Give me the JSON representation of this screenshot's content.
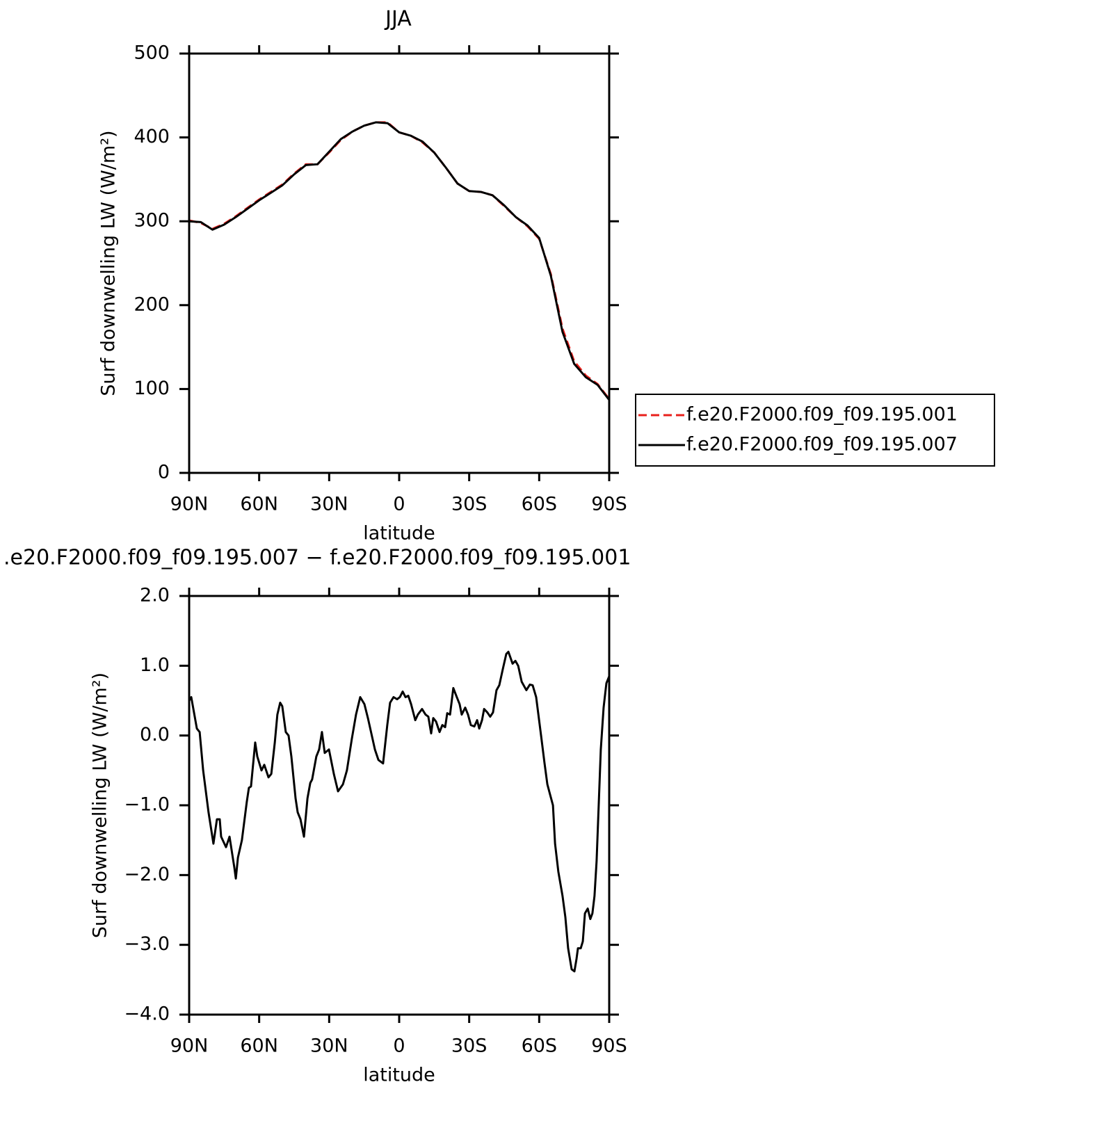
{
  "chart_data": [
    {
      "type": "line",
      "title": "JJA",
      "x_label": "latitude",
      "y_label": "Surf downwelling LW (W/m²)",
      "x": [
        90,
        85,
        80,
        75,
        70,
        65,
        60,
        55,
        50,
        45,
        40,
        35,
        30,
        25,
        20,
        15,
        10,
        5,
        0,
        -5,
        -10,
        -15,
        -20,
        -25,
        -30,
        -35,
        -40,
        -45,
        -50,
        -55,
        -60,
        -65,
        -70,
        -75,
        -80,
        -85,
        -90
      ],
      "series": [
        {
          "name": "f.e20.F2000.f09_f09.195.001",
          "color": "#e8201c",
          "line_style": "dashed",
          "values": [
            301,
            298,
            291,
            297,
            306,
            316,
            326,
            335,
            344,
            357,
            368,
            368,
            382,
            397,
            407,
            414,
            418,
            418,
            406,
            402,
            394,
            382,
            364,
            345,
            336,
            335,
            331,
            318,
            305,
            294,
            279,
            237,
            172,
            133,
            116,
            106,
            88
          ]
        },
        {
          "name": "f.e20.F2000.f09_f09.195.007",
          "color": "#000000",
          "line_style": "solid",
          "values": [
            300,
            299,
            290,
            296,
            305,
            315,
            325,
            334,
            343,
            356,
            367,
            368,
            383,
            398,
            407,
            414,
            418,
            417,
            406,
            402,
            395,
            382,
            364,
            345,
            336,
            335,
            331,
            319,
            305,
            295,
            280,
            235,
            168,
            130,
            114,
            105,
            87
          ]
        }
      ],
      "xlim": [
        90,
        -90
      ],
      "xticks": [
        {
          "value": 90,
          "label": "90N"
        },
        {
          "value": 60,
          "label": "60N"
        },
        {
          "value": 30,
          "label": "30N"
        },
        0,
        {
          "value": -30,
          "label": "30S"
        },
        {
          "value": -60,
          "label": "60S"
        },
        {
          "value": -90,
          "label": "90S"
        }
      ],
      "ylim": [
        0,
        500
      ],
      "yticks": [
        0,
        100,
        200,
        300,
        400,
        500
      ],
      "legend": "right"
    },
    {
      "type": "line",
      "title": ".e20.F2000.f09_f09.195.007 − f.e20.F2000.f09_f09.195.001",
      "x_label": "latitude",
      "y_label": "Surf downwelling LW (W/m²)",
      "x": [
        90,
        89.1,
        86.7,
        85.5,
        84.0,
        81.7,
        79.6,
        78.1,
        76.9,
        76.3,
        74.2,
        72.7,
        70.6,
        70.0,
        69.1,
        67.4,
        65.3,
        64.4,
        63.5,
        61.7,
        60.8,
        59.0,
        57.8,
        56.0,
        54.8,
        53.3,
        52.2,
        51.0,
        50.1,
        48.6,
        47.4,
        46.2,
        44.4,
        43.5,
        42.3,
        40.8,
        39.3,
        38.1,
        37.3,
        35.5,
        34.3,
        33.1,
        31.9,
        30.1,
        28.0,
        26.2,
        24.1,
        22.4,
        20.3,
        18.5,
        16.7,
        14.9,
        13.4,
        10.4,
        8.9,
        6.9,
        5.1,
        3.9,
        2.4,
        0.9,
        -0.3,
        -1.5,
        -2.7,
        -3.9,
        -5.1,
        -6.9,
        -8.0,
        -9.8,
        -11.3,
        -12.5,
        -13.7,
        -14.6,
        -15.8,
        -17.3,
        -18.5,
        -19.7,
        -20.6,
        -21.8,
        -23.2,
        -24.7,
        -25.9,
        -26.8,
        -28.3,
        -29.5,
        -30.7,
        -32.2,
        -33.4,
        -34.3,
        -35.5,
        -36.4,
        -37.8,
        -39.0,
        -40.2,
        -41.7,
        -42.9,
        -44.4,
        -45.9,
        -46.8,
        -48.6,
        -49.8,
        -51.0,
        -52.5,
        -54.5,
        -56.0,
        -57.2,
        -58.7,
        -60.8,
        -62.3,
        -63.5,
        -64.7,
        -65.9,
        -66.8,
        -68.2,
        -70.0,
        -71.2,
        -72.4,
        -73.9,
        -75.1,
        -76.0,
        -76.6,
        -77.8,
        -78.7,
        -79.6,
        -80.8,
        -81.9,
        -82.8,
        -83.7,
        -84.6,
        -85.5,
        -86.4,
        -87.6,
        -88.8,
        -90
      ],
      "values": [
        0.5,
        0.55,
        0.1,
        0.05,
        -0.5,
        -1.1,
        -1.55,
        -1.2,
        -1.2,
        -1.45,
        -1.6,
        -1.45,
        -1.9,
        -2.05,
        -1.75,
        -1.5,
        -0.95,
        -0.75,
        -0.73,
        -0.1,
        -0.3,
        -0.5,
        -0.42,
        -0.6,
        -0.55,
        -0.1,
        0.3,
        0.47,
        0.42,
        0.05,
        0,
        -0.3,
        -0.9,
        -1.1,
        -1.2,
        -1.45,
        -0.9,
        -0.68,
        -0.63,
        -0.3,
        -0.2,
        0.05,
        -0.25,
        -0.2,
        -0.55,
        -0.8,
        -0.7,
        -0.5,
        -0.05,
        0.3,
        0.55,
        0.45,
        0.25,
        -0.2,
        -0.35,
        -0.4,
        0.15,
        0.47,
        0.55,
        0.52,
        0.55,
        0.63,
        0.55,
        0.57,
        0.45,
        0.22,
        0.3,
        0.38,
        0.3,
        0.27,
        0.03,
        0.25,
        0.2,
        0.05,
        0.15,
        0.12,
        0.32,
        0.3,
        0.68,
        0.55,
        0.45,
        0.3,
        0.4,
        0.3,
        0.15,
        0.13,
        0.22,
        0.1,
        0.22,
        0.38,
        0.33,
        0.27,
        0.33,
        0.65,
        0.72,
        0.95,
        1.17,
        1.2,
        1.03,
        1.07,
        1.0,
        0.77,
        0.65,
        0.73,
        0.72,
        0.55,
        0.0,
        -0.4,
        -0.7,
        -0.85,
        -1.0,
        -1.55,
        -1.95,
        -2.3,
        -2.6,
        -3.05,
        -3.35,
        -3.38,
        -3.2,
        -3.05,
        -3.05,
        -2.95,
        -2.55,
        -2.48,
        -2.63,
        -2.55,
        -2.3,
        -1.8,
        -1.0,
        -0.2,
        0.4,
        0.75,
        0.85
      ],
      "color": "#000000",
      "xlim": [
        90,
        -90
      ],
      "xticks": [
        {
          "value": 90,
          "label": "90N"
        },
        {
          "value": 60,
          "label": "60N"
        },
        {
          "value": 30,
          "label": "30N"
        },
        0,
        {
          "value": -30,
          "label": "30S"
        },
        {
          "value": -60,
          "label": "60S"
        },
        {
          "value": -90,
          "label": "90S"
        }
      ],
      "ylim": [
        -4,
        2
      ],
      "yticks": [
        {
          "value": -4,
          "label": "−4.0"
        },
        {
          "value": -3,
          "label": "−3.0"
        },
        {
          "value": -2,
          "label": "−2.0"
        },
        {
          "value": -1,
          "label": "−1.0"
        },
        {
          "value": 0,
          "label": "0.0"
        },
        {
          "value": 1,
          "label": "1.0"
        },
        {
          "value": 2,
          "label": "2.0"
        }
      ]
    }
  ]
}
